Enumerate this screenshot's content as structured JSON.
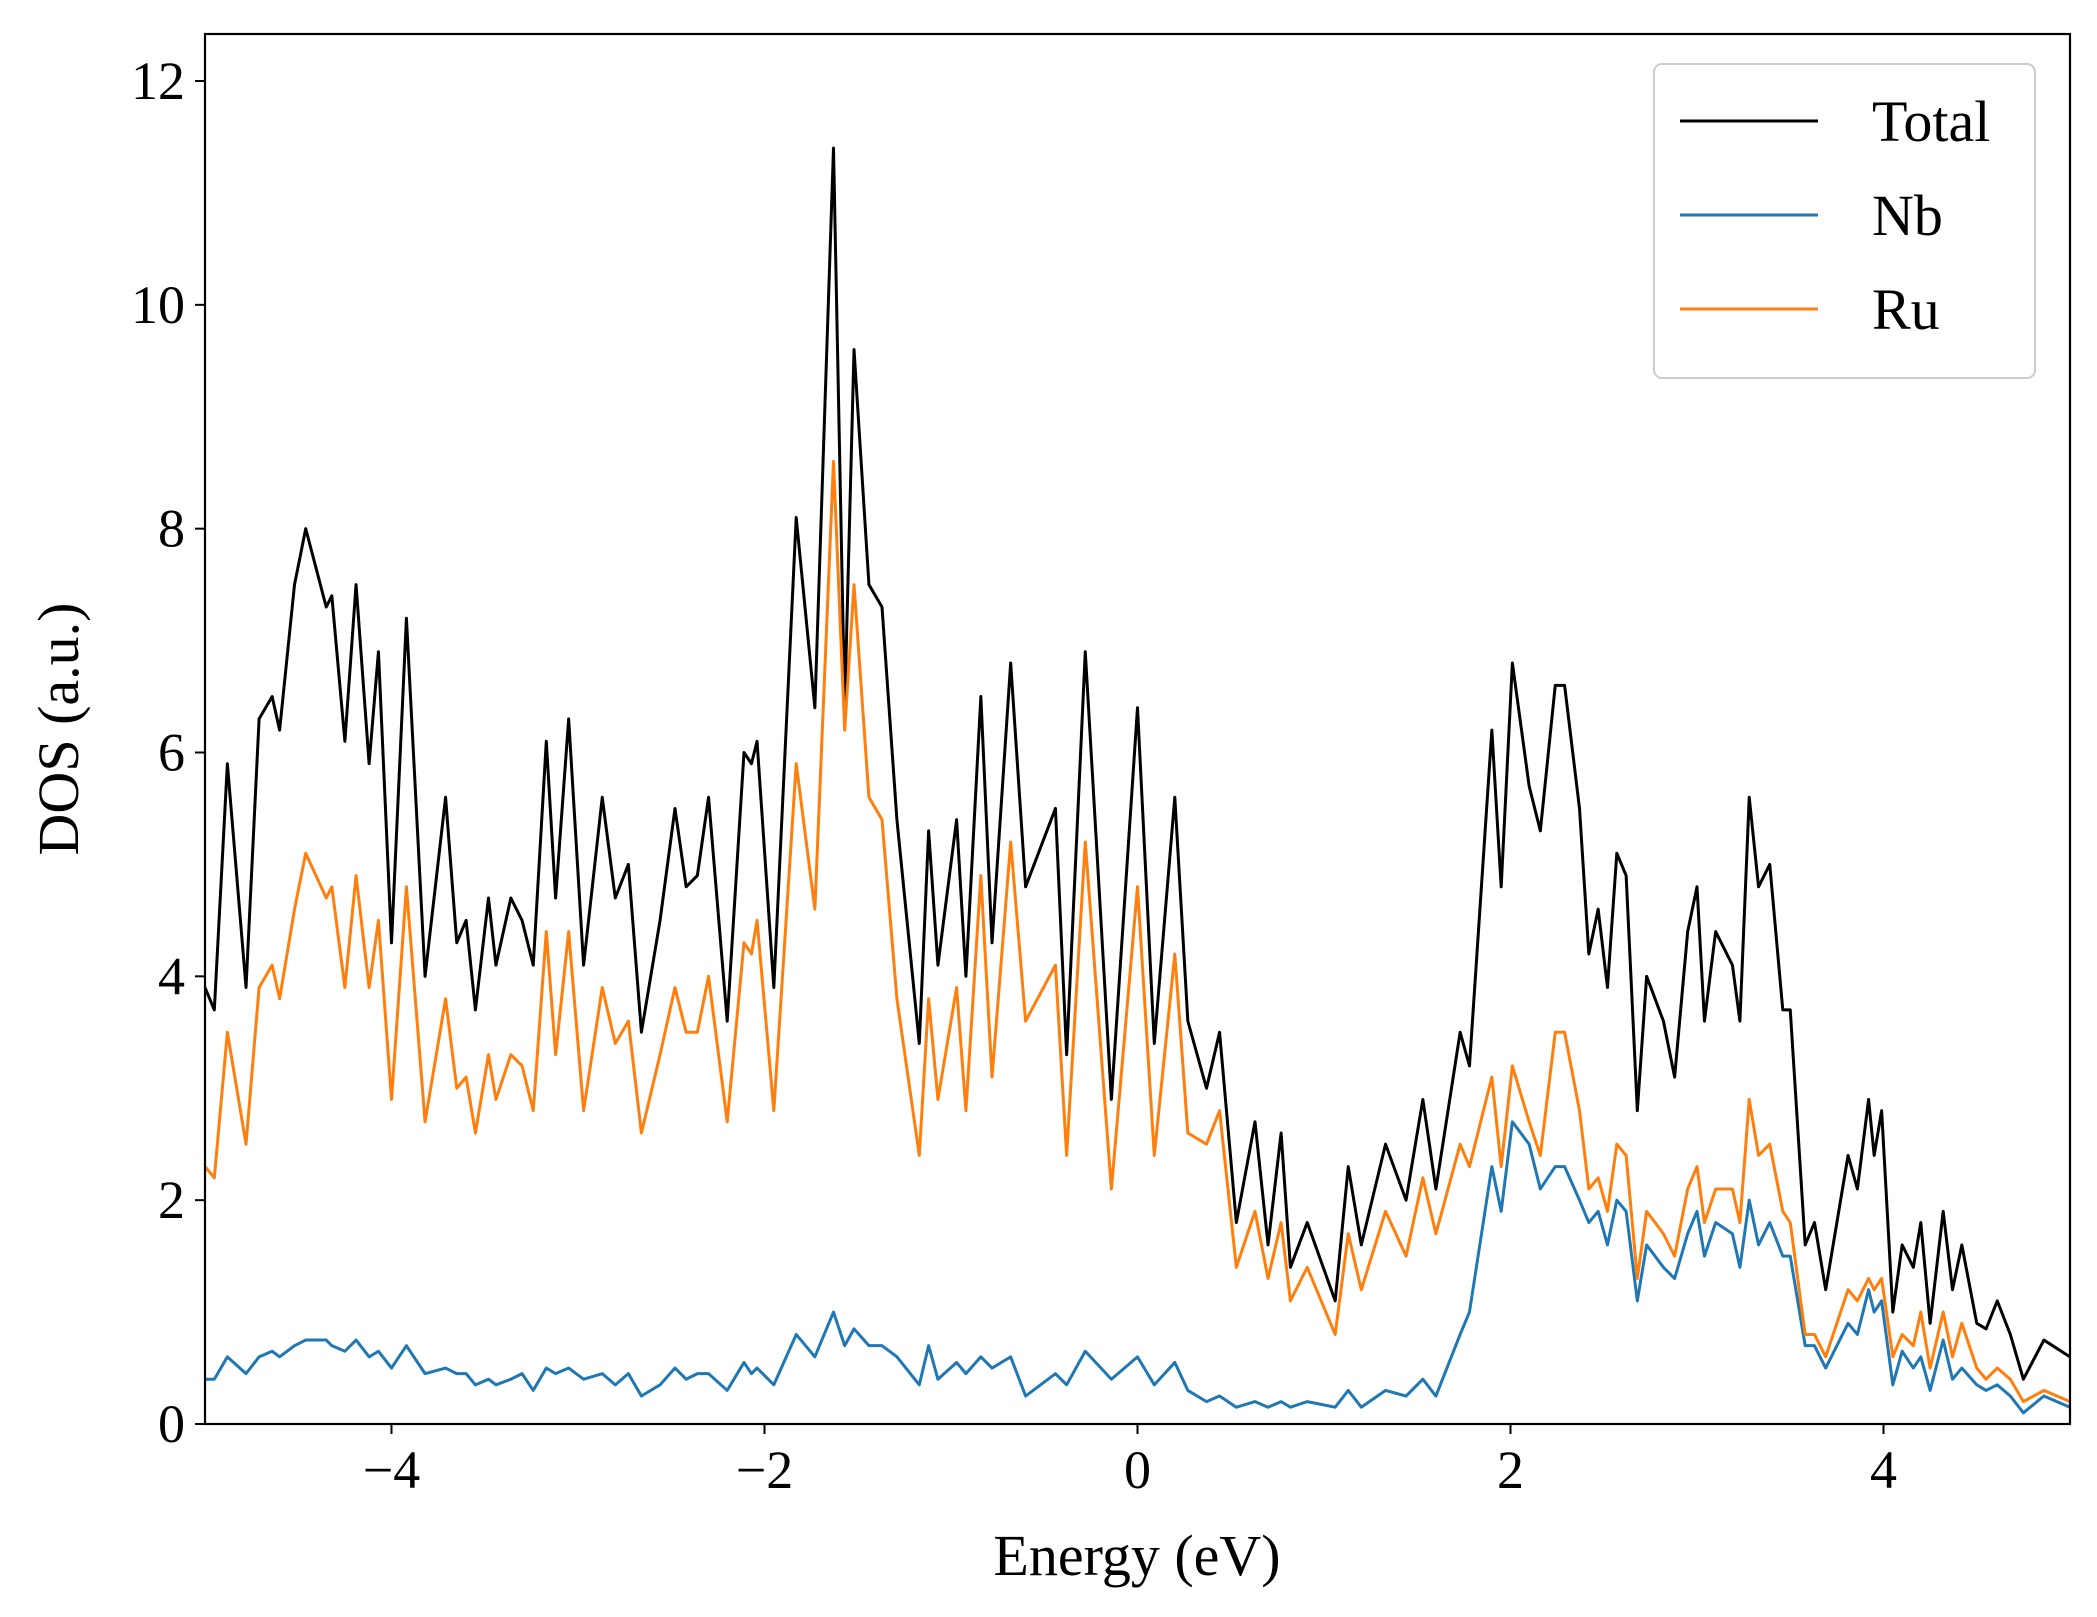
{
  "chart_data": {
    "type": "line",
    "xlabel": "Energy (eV)",
    "ylabel": "DOS (a.u.)",
    "xlim": [
      -5,
      5
    ],
    "ylim": [
      0,
      12.42
    ],
    "xticks": [
      {
        "value": -4,
        "label": "−4"
      },
      {
        "value": -2,
        "label": "−2"
      },
      0,
      2,
      4
    ],
    "yticks": [
      0,
      2,
      4,
      6,
      8,
      10,
      12
    ],
    "legend": "upper right",
    "x": [
      -5,
      -4.95,
      -4.88,
      -4.78,
      -4.71,
      -4.64,
      -4.6,
      -4.52,
      -4.46,
      -4.35,
      -4.32,
      -4.25,
      -4.19,
      -4.12,
      -4.07,
      -4.0,
      -3.92,
      -3.82,
      -3.71,
      -3.65,
      -3.6,
      -3.55,
      -3.48,
      -3.44,
      -3.36,
      -3.3,
      -3.24,
      -3.17,
      -3.12,
      -3.05,
      -2.97,
      -2.87,
      -2.8,
      -2.73,
      -2.66,
      -2.56,
      -2.48,
      -2.42,
      -2.36,
      -2.3,
      -2.2,
      -2.11,
      -2.07,
      -2.04,
      -1.95,
      -1.83,
      -1.73,
      -1.63,
      -1.57,
      -1.52,
      -1.44,
      -1.37,
      -1.29,
      -1.17,
      -1.12,
      -1.07,
      -0.97,
      -0.92,
      -0.84,
      -0.78,
      -0.68,
      -0.6,
      -0.44,
      -0.38,
      -0.28,
      -0.14,
      0,
      0.09,
      0.2,
      0.27,
      0.37,
      0.44,
      0.53,
      0.63,
      0.7,
      0.77,
      0.82,
      0.91,
      1.06,
      1.13,
      1.2,
      1.33,
      1.44,
      1.53,
      1.6,
      1.73,
      1.78,
      1.9,
      1.95,
      2.01,
      2.1,
      2.16,
      2.24,
      2.29,
      2.37,
      2.42,
      2.47,
      2.52,
      2.57,
      2.62,
      2.68,
      2.73,
      2.82,
      2.88,
      2.95,
      3.0,
      3.04,
      3.1,
      3.19,
      3.23,
      3.28,
      3.33,
      3.39,
      3.46,
      3.5,
      3.58,
      3.63,
      3.69,
      3.81,
      3.86,
      3.92,
      3.95,
      3.99,
      4.05,
      4.1,
      4.16,
      4.2,
      4.25,
      4.32,
      4.37,
      4.42,
      4.5,
      4.55,
      4.61,
      4.68,
      4.75,
      4.86,
      5.0
    ],
    "series": [
      {
        "name": "Total",
        "color": "#000000",
        "values": [
          3.9,
          3.7,
          5.9,
          3.9,
          6.3,
          6.5,
          6.2,
          7.5,
          8.0,
          7.3,
          7.4,
          6.1,
          7.5,
          5.9,
          6.9,
          4.3,
          7.2,
          4.0,
          5.6,
          4.3,
          4.5,
          3.7,
          4.7,
          4.1,
          4.7,
          4.5,
          4.1,
          6.1,
          4.7,
          6.3,
          4.1,
          5.6,
          4.7,
          5.0,
          3.5,
          4.5,
          5.5,
          4.8,
          4.9,
          5.6,
          3.6,
          6.0,
          5.9,
          6.1,
          3.9,
          8.1,
          6.4,
          11.4,
          6.4,
          9.6,
          7.5,
          7.3,
          5.4,
          3.4,
          5.3,
          4.1,
          5.4,
          4.0,
          6.5,
          4.3,
          6.8,
          4.8,
          5.5,
          3.3,
          6.9,
          2.9,
          6.4,
          3.4,
          5.6,
          3.6,
          3.0,
          3.5,
          1.8,
          2.7,
          1.6,
          2.6,
          1.4,
          1.8,
          1.1,
          2.3,
          1.6,
          2.5,
          2.0,
          2.9,
          2.1,
          3.5,
          3.2,
          6.2,
          4.8,
          6.8,
          5.7,
          5.3,
          6.6,
          6.6,
          5.5,
          4.2,
          4.6,
          3.9,
          5.1,
          4.9,
          2.8,
          4.0,
          3.6,
          3.1,
          4.4,
          4.8,
          3.6,
          4.4,
          4.1,
          3.6,
          5.6,
          4.8,
          5.0,
          3.7,
          3.7,
          1.6,
          1.8,
          1.2,
          2.4,
          2.1,
          2.9,
          2.4,
          2.8,
          1.0,
          1.6,
          1.4,
          1.8,
          0.9,
          1.9,
          1.2,
          1.6,
          0.9,
          0.85,
          1.1,
          0.8,
          0.4,
          0.75,
          0.6
        ]
      },
      {
        "name": "Nb",
        "color": "#1f77b4",
        "values": [
          0.4,
          0.4,
          0.6,
          0.45,
          0.6,
          0.65,
          0.6,
          0.7,
          0.75,
          0.75,
          0.7,
          0.65,
          0.75,
          0.6,
          0.65,
          0.5,
          0.7,
          0.45,
          0.5,
          0.45,
          0.45,
          0.35,
          0.4,
          0.35,
          0.4,
          0.45,
          0.3,
          0.5,
          0.45,
          0.5,
          0.4,
          0.45,
          0.35,
          0.45,
          0.25,
          0.35,
          0.5,
          0.4,
          0.45,
          0.45,
          0.3,
          0.55,
          0.45,
          0.5,
          0.35,
          0.8,
          0.6,
          1.0,
          0.7,
          0.85,
          0.7,
          0.7,
          0.6,
          0.35,
          0.7,
          0.4,
          0.55,
          0.45,
          0.6,
          0.5,
          0.6,
          0.25,
          0.45,
          0.35,
          0.65,
          0.4,
          0.6,
          0.35,
          0.55,
          0.3,
          0.2,
          0.25,
          0.15,
          0.2,
          0.15,
          0.2,
          0.15,
          0.2,
          0.15,
          0.3,
          0.15,
          0.3,
          0.25,
          0.4,
          0.25,
          0.8,
          1.0,
          2.3,
          1.9,
          2.7,
          2.5,
          2.1,
          2.3,
          2.3,
          2.0,
          1.8,
          1.9,
          1.6,
          2.0,
          1.9,
          1.1,
          1.6,
          1.4,
          1.3,
          1.7,
          1.9,
          1.5,
          1.8,
          1.7,
          1.4,
          2.0,
          1.6,
          1.8,
          1.5,
          1.5,
          0.7,
          0.7,
          0.5,
          0.9,
          0.8,
          1.2,
          1.0,
          1.1,
          0.35,
          0.65,
          0.5,
          0.6,
          0.3,
          0.75,
          0.4,
          0.5,
          0.35,
          0.3,
          0.35,
          0.25,
          0.1,
          0.25,
          0.15
        ]
      },
      {
        "name": "Ru",
        "color": "#ff7f0e",
        "values": [
          2.3,
          2.2,
          3.5,
          2.5,
          3.9,
          4.1,
          3.8,
          4.6,
          5.1,
          4.7,
          4.8,
          3.9,
          4.9,
          3.9,
          4.5,
          2.9,
          4.8,
          2.7,
          3.8,
          3.0,
          3.1,
          2.6,
          3.3,
          2.9,
          3.3,
          3.2,
          2.8,
          4.4,
          3.3,
          4.4,
          2.8,
          3.9,
          3.4,
          3.6,
          2.6,
          3.3,
          3.9,
          3.5,
          3.5,
          4.0,
          2.7,
          4.3,
          4.2,
          4.5,
          2.8,
          5.9,
          4.6,
          8.6,
          6.2,
          7.5,
          5.6,
          5.4,
          3.8,
          2.4,
          3.8,
          2.9,
          3.9,
          2.8,
          4.9,
          3.1,
          5.2,
          3.6,
          4.1,
          2.4,
          5.2,
          2.1,
          4.8,
          2.4,
          4.2,
          2.6,
          2.5,
          2.8,
          1.4,
          1.9,
          1.3,
          1.8,
          1.1,
          1.4,
          0.8,
          1.7,
          1.2,
          1.9,
          1.5,
          2.2,
          1.7,
          2.5,
          2.3,
          3.1,
          2.3,
          3.2,
          2.7,
          2.4,
          3.5,
          3.5,
          2.8,
          2.1,
          2.2,
          1.9,
          2.5,
          2.4,
          1.3,
          1.9,
          1.7,
          1.5,
          2.1,
          2.3,
          1.8,
          2.1,
          2.1,
          1.8,
          2.9,
          2.4,
          2.5,
          1.9,
          1.8,
          0.8,
          0.8,
          0.6,
          1.2,
          1.1,
          1.3,
          1.2,
          1.3,
          0.6,
          0.8,
          0.7,
          1.0,
          0.5,
          1.0,
          0.6,
          0.9,
          0.5,
          0.4,
          0.5,
          0.4,
          0.2,
          0.3,
          0.2
        ]
      }
    ]
  }
}
